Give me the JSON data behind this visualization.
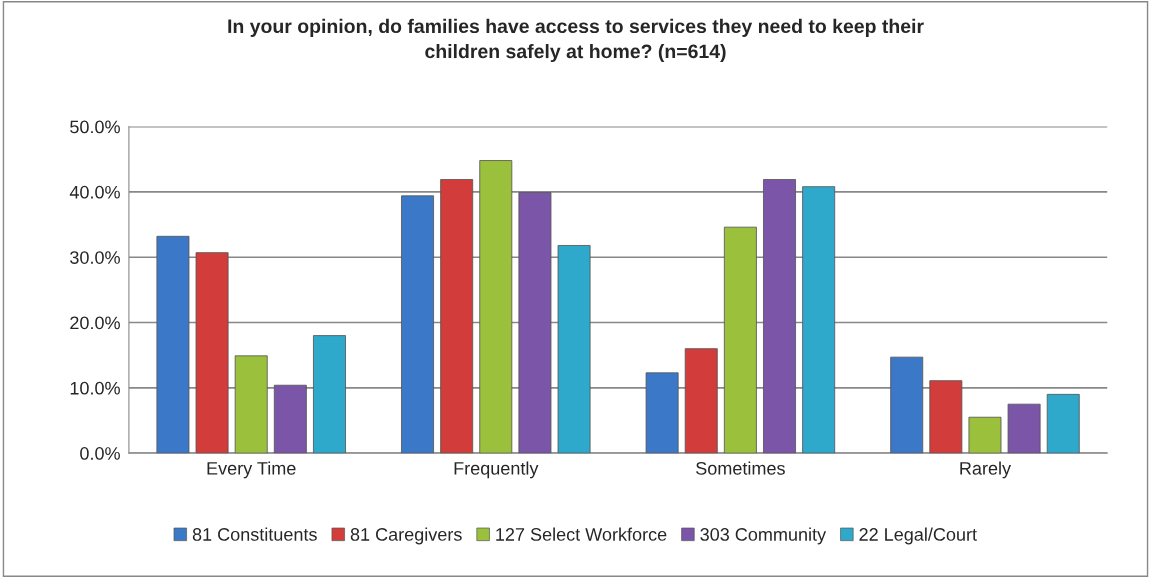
{
  "chart_data": {
    "type": "bar",
    "title": "In your opinion, do families have access to services they need to keep their\nchildren safely at home? (n=614)",
    "categories": [
      "Every Time",
      "Frequently",
      "Sometimes",
      "Rarely"
    ],
    "series": [
      {
        "name": "81 Constituents",
        "color": "#3c78c8",
        "values": [
          33.2,
          39.4,
          12.3,
          14.7
        ]
      },
      {
        "name": "81 Caregivers",
        "color": "#d23c3a",
        "values": [
          30.7,
          41.9,
          16.0,
          11.1
        ]
      },
      {
        "name": "127 Select Workforce",
        "color": "#9bc13c",
        "values": [
          14.9,
          44.8,
          34.6,
          5.5
        ]
      },
      {
        "name": "303 Community",
        "color": "#7a55a8",
        "values": [
          10.4,
          39.9,
          41.9,
          7.5
        ]
      },
      {
        "name": "22 Legal/Court",
        "color": "#2ea9cb",
        "values": [
          18.0,
          31.8,
          40.8,
          9.0
        ]
      }
    ],
    "ylim": [
      0,
      50
    ],
    "yticks": [
      {
        "value": 0,
        "label": "0.0%"
      },
      {
        "value": 10,
        "label": "10.0%"
      },
      {
        "value": 20,
        "label": "20.0%"
      },
      {
        "value": 30,
        "label": "30.0%"
      },
      {
        "value": 40,
        "label": "40.0%"
      },
      {
        "value": 50,
        "label": "50.0%"
      }
    ],
    "grid": "y",
    "legend": "bottom"
  }
}
